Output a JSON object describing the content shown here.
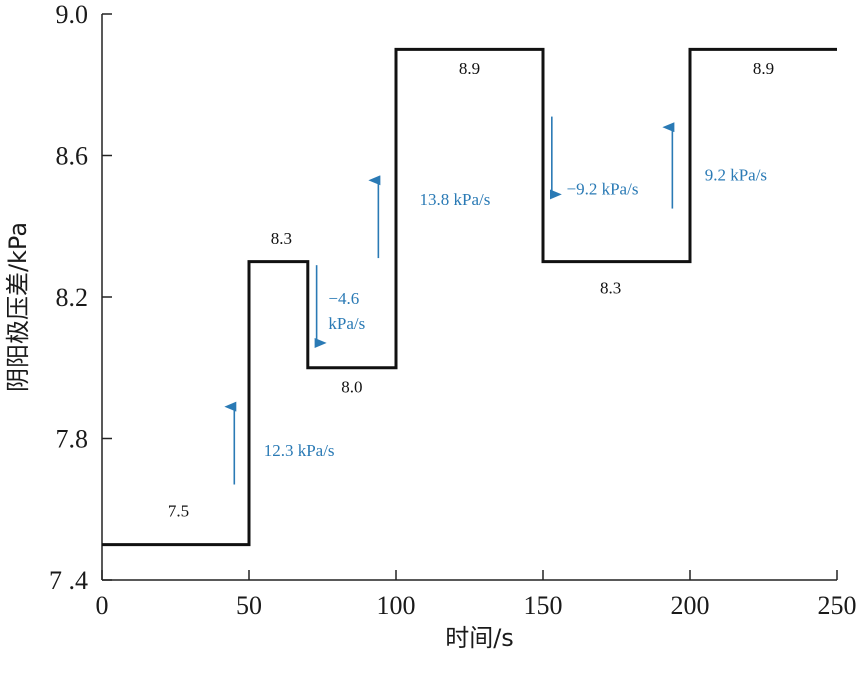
{
  "colors": {
    "line": "#111111",
    "accent": "#2a7ab5",
    "axis": "#222222"
  },
  "chart_data": {
    "type": "line",
    "xlabel": "时间/s",
    "ylabel": "阴阳极压差/kPa",
    "xlim": [
      0,
      250
    ],
    "ylim": [
      7.4,
      9.0
    ],
    "xticks": [
      0,
      50,
      100,
      150,
      200,
      250
    ],
    "xtick_labels": [
      "0",
      "50",
      "100",
      "150",
      "200",
      "250"
    ],
    "yticks": [
      7.4,
      7.8,
      8.2,
      8.6,
      9.0
    ],
    "ytick_labels": [
      "7 .4",
      "7.8",
      "8.2",
      "8.6",
      "9.0"
    ],
    "grid": false,
    "series": [
      {
        "style": "step",
        "points": [
          [
            0,
            7.5
          ],
          [
            50,
            7.5
          ],
          [
            50,
            8.3
          ],
          [
            70,
            8.3
          ],
          [
            70,
            8.0
          ],
          [
            100,
            8.0
          ],
          [
            100,
            8.9
          ],
          [
            150,
            8.9
          ],
          [
            150,
            8.3
          ],
          [
            200,
            8.3
          ],
          [
            200,
            8.9
          ],
          [
            250,
            8.9
          ]
        ]
      }
    ],
    "step_labels": [
      {
        "text": "7.5",
        "x": 26,
        "y": 7.58
      },
      {
        "text": "8.3",
        "x": 61,
        "y": 8.35
      },
      {
        "text": "8.0",
        "x": 85,
        "y": 7.93
      },
      {
        "text": "8.9",
        "x": 125,
        "y": 8.83
      },
      {
        "text": "8.3",
        "x": 173,
        "y": 8.21
      },
      {
        "text": "8.9",
        "x": 225,
        "y": 8.83
      }
    ],
    "rate_annotations": [
      {
        "direction": "up",
        "x": 45,
        "y_from": 7.67,
        "y_to": 7.89,
        "lines": [
          "12.3 kPa/s"
        ],
        "text_x": 55,
        "text_y": 7.75
      },
      {
        "direction": "down",
        "x": 73,
        "y_from": 8.29,
        "y_to": 8.07,
        "lines": [
          "−4.6",
          "kPa/s"
        ],
        "text_x": 77,
        "text_y": [
          8.18,
          8.11
        ]
      },
      {
        "direction": "up",
        "x": 94,
        "y_from": 8.31,
        "y_to": 8.53,
        "lines": [
          "13.8 kPa/s"
        ],
        "text_x": 108,
        "text_y": 8.46
      },
      {
        "direction": "down",
        "x": 153,
        "y_from": 8.71,
        "y_to": 8.49,
        "lines": [
          "−9.2 kPa/s"
        ],
        "text_x": 158,
        "text_y": 8.49
      },
      {
        "direction": "up",
        "x": 194,
        "y_from": 8.45,
        "y_to": 8.68,
        "lines": [
          "9.2 kPa/s"
        ],
        "text_x": 205,
        "text_y": 8.53
      }
    ]
  }
}
